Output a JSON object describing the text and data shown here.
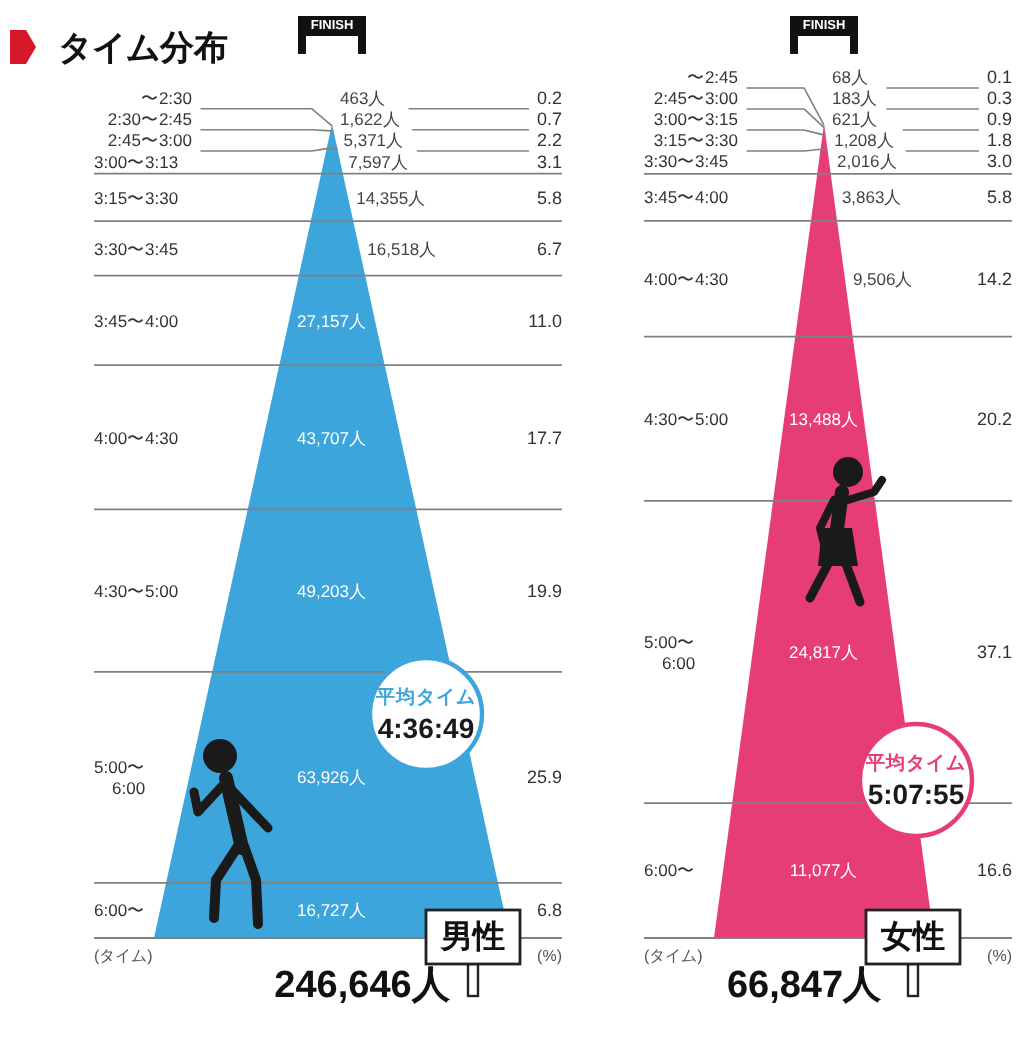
{
  "chart_data": [
    {
      "type": "other",
      "title": "タイム分布",
      "categories": [
        "〜2:30",
        "2:30〜2:45",
        "2:45〜3:00",
        "3:00〜3:13",
        "3:15〜3:30",
        "3:30〜3:45",
        "3:45〜4:00",
        "4:00〜4:30",
        "4:30〜5:00",
        "5:00〜6:00",
        "6:00〜"
      ],
      "series": [
        {
          "name": "男性",
          "color": "#3ca5dc",
          "values": [
            463,
            1622,
            5371,
            7597,
            14355,
            16518,
            27157,
            43707,
            49203,
            63926,
            16727
          ],
          "value_labels": [
            "463人",
            "1,622人",
            "5,371人",
            "7,597人",
            "14,355人",
            "16,518人",
            "27,157人",
            "43,707人",
            "49,203人",
            "63,926人",
            "16,727人"
          ]
        },
        {
          "values": [
            0.2,
            0.7,
            2.2,
            3.1,
            5.8,
            6.7,
            11.0,
            17.7,
            19.9,
            25.9,
            6.8
          ],
          "value_labels": [
            "0.2",
            "0.7",
            "2.2",
            "3.1",
            "5.8",
            "6.7",
            "11.0",
            "17.7",
            "19.9",
            "25.9",
            "6.8"
          ]
        }
      ],
      "ylabel": "(タイム)",
      "y2label": "(%)",
      "totals": [
        "246,646人"
      ],
      "annotations": [
        "FINISH",
        "平均タイム",
        "4:36:49"
      ]
    },
    {
      "type": "other",
      "categories": [
        "〜2:45",
        "2:45〜3:00",
        "3:00〜3:15",
        "3:15〜3:30",
        "3:30〜3:45",
        "3:45〜4:00",
        "4:00〜4:30",
        "4:30〜5:00",
        "5:00〜6:00",
        "6:00〜"
      ],
      "series": [
        {
          "name": "女性",
          "color": "#e63c78",
          "values": [
            68,
            183,
            621,
            1208,
            2016,
            3863,
            9506,
            13488,
            24817,
            11077
          ],
          "value_labels": [
            "68人",
            "183人",
            "621人",
            "1,208人",
            "2,016人",
            "3,863人",
            "9,506人",
            "13,488人",
            "24,817人",
            "11,077人"
          ]
        },
        {
          "values": [
            0.1,
            0.3,
            0.9,
            1.8,
            3.0,
            5.8,
            14.2,
            20.2,
            37.1,
            16.6
          ],
          "value_labels": [
            "0.1",
            "0.3",
            "0.9",
            "1.8",
            "3.0",
            "5.8",
            "14.2",
            "20.2",
            "37.1",
            "16.6"
          ]
        }
      ],
      "ylabel": "(タイム)",
      "y2label": "(%)",
      "totals": [
        "66,847人"
      ],
      "annotations": [
        "FINISH",
        "平均タイム",
        "5:07:55"
      ]
    }
  ]
}
